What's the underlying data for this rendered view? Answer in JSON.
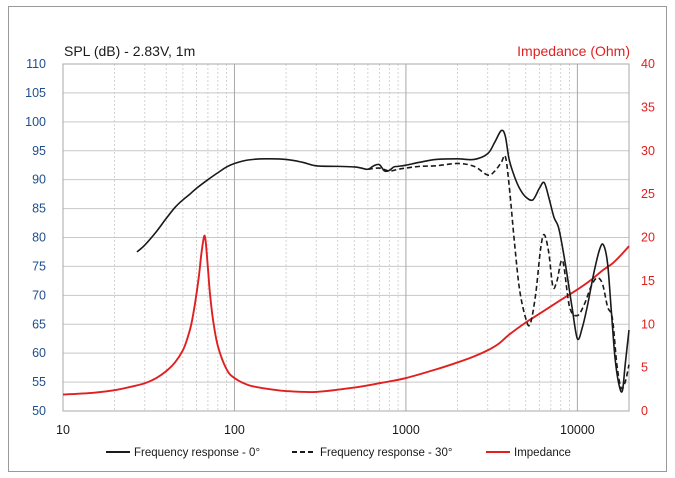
{
  "chart_data": {
    "type": "line",
    "title_left": "SPL (dB) - 2.83V, 1m",
    "title_right": "Impedance (Ohm)",
    "x_scale": "log",
    "xlim": [
      10,
      20000
    ],
    "x_ticks": [
      10,
      100,
      1000,
      10000
    ],
    "x_tick_labels": [
      "10",
      "100",
      "1000",
      "10000"
    ],
    "y_left_lim": [
      50,
      110
    ],
    "y_left_ticks": [
      50,
      55,
      60,
      65,
      70,
      75,
      80,
      85,
      90,
      95,
      100,
      105,
      110
    ],
    "y_left_tick_labels": [
      "50",
      "55",
      "60",
      "65",
      "70",
      "75",
      "80",
      "85",
      "90",
      "95",
      "100",
      "105",
      "110"
    ],
    "y_right_lim": [
      0,
      40
    ],
    "y_right_ticks": [
      0,
      5,
      10,
      15,
      20,
      25,
      30,
      35,
      40
    ],
    "y_right_tick_labels": [
      "0",
      "5",
      "10",
      "15",
      "20",
      "25",
      "30",
      "35",
      "40"
    ],
    "grid": true,
    "legend_position": "bottom",
    "colors": {
      "left_axis": "#1f4e8c",
      "right_axis": "#e0201f",
      "spl": "#1a1a1a",
      "impedance": "#e02020",
      "grid": "#c8c8c8"
    },
    "series": [
      {
        "name": "Frequency response - 0°",
        "axis": "left",
        "style": "solid",
        "color": "#1a1a1a",
        "x": [
          27,
          30,
          35,
          40,
          45,
          50,
          55,
          60,
          70,
          80,
          90,
          100,
          120,
          150,
          200,
          250,
          300,
          400,
          500,
          550,
          600,
          650,
          700,
          750,
          800,
          850,
          900,
          1000,
          1200,
          1500,
          2000,
          2500,
          3000,
          3300,
          3600,
          3800,
          4000,
          4300,
          4600,
          5000,
          5500,
          6000,
          6400,
          6800,
          7300,
          7800,
          8500,
          9300,
          10000,
          10700,
          11500,
          12500,
          13500,
          14200,
          15000,
          15800,
          16600,
          17500,
          18300,
          19000,
          20000
        ],
        "y": [
          77.5,
          78.7,
          81,
          83.3,
          85.2,
          86.5,
          87.5,
          88.5,
          90,
          91.2,
          92.2,
          92.8,
          93.4,
          93.6,
          93.5,
          93.0,
          92.4,
          92.3,
          92.2,
          92.0,
          91.8,
          92.4,
          92.6,
          91.5,
          91.6,
          92.2,
          92.3,
          92.5,
          93.0,
          93.5,
          93.6,
          93.5,
          94.5,
          96.5,
          98.5,
          97.5,
          93.5,
          90.5,
          88.5,
          87.0,
          86.5,
          88.5,
          89.5,
          87.0,
          83.5,
          81.5,
          75.5,
          68.0,
          62.5,
          64.5,
          68.5,
          74.0,
          78.0,
          78.7,
          75.5,
          67.0,
          59.0,
          54.5,
          53.5,
          58.0,
          64.0
        ]
      },
      {
        "name": "Frequency response - 30°",
        "axis": "left",
        "style": "dashed",
        "color": "#1a1a1a",
        "x": [
          600,
          700,
          800,
          900,
          1000,
          1200,
          1500,
          2000,
          2500,
          3000,
          3300,
          3600,
          3800,
          4000,
          4300,
          4600,
          5000,
          5300,
          5700,
          6100,
          6400,
          6800,
          7200,
          7600,
          8200,
          9000,
          10000,
          11000,
          12000,
          13000,
          14000,
          15000,
          16000,
          17000,
          18000,
          19000,
          20000
        ],
        "y": [
          91.8,
          92.0,
          91.5,
          91.8,
          92.0,
          92.3,
          92.4,
          92.8,
          92.3,
          90.8,
          91.5,
          93.0,
          94.0,
          89.0,
          79.0,
          71.0,
          66.0,
          65.0,
          70.0,
          78.0,
          80.5,
          77.5,
          71.5,
          72.5,
          76.0,
          68.0,
          66.5,
          68.5,
          71.5,
          73.0,
          72.0,
          68.0,
          66.0,
          58.0,
          54.0,
          55.0,
          58.0
        ]
      },
      {
        "name": "Impedance",
        "axis": "right",
        "style": "solid",
        "color": "#e02020",
        "x": [
          10,
          15,
          20,
          25,
          30,
          35,
          40,
          45,
          50,
          53,
          56,
          59,
          62,
          64,
          66,
          67,
          68,
          70,
          72,
          75,
          80,
          90,
          100,
          120,
          150,
          200,
          300,
          500,
          700,
          1000,
          1500,
          2000,
          2500,
          3000,
          3500,
          4000,
          5000,
          6000,
          8000,
          10000,
          12000,
          14000,
          16000,
          18000,
          20000
        ],
        "y": [
          1.9,
          2.1,
          2.4,
          2.8,
          3.2,
          3.8,
          4.6,
          5.6,
          7.0,
          8.3,
          10.0,
          12.5,
          15.5,
          18.0,
          19.8,
          20.2,
          19.5,
          16.5,
          13.5,
          10.5,
          7.5,
          4.8,
          3.8,
          3.0,
          2.6,
          2.3,
          2.2,
          2.7,
          3.2,
          3.8,
          4.8,
          5.6,
          6.3,
          7.0,
          7.8,
          8.8,
          10.2,
          11.2,
          12.8,
          14.0,
          15.1,
          16.2,
          17.0,
          18.0,
          19.0
        ]
      }
    ]
  },
  "legend": [
    {
      "label": "Frequency response - 0°",
      "style": "solid",
      "color": "#1a1a1a"
    },
    {
      "label": "Frequency response - 30°",
      "style": "dashed",
      "color": "#1a1a1a"
    },
    {
      "label": "Impedance",
      "style": "solid",
      "color": "#e02020"
    }
  ]
}
